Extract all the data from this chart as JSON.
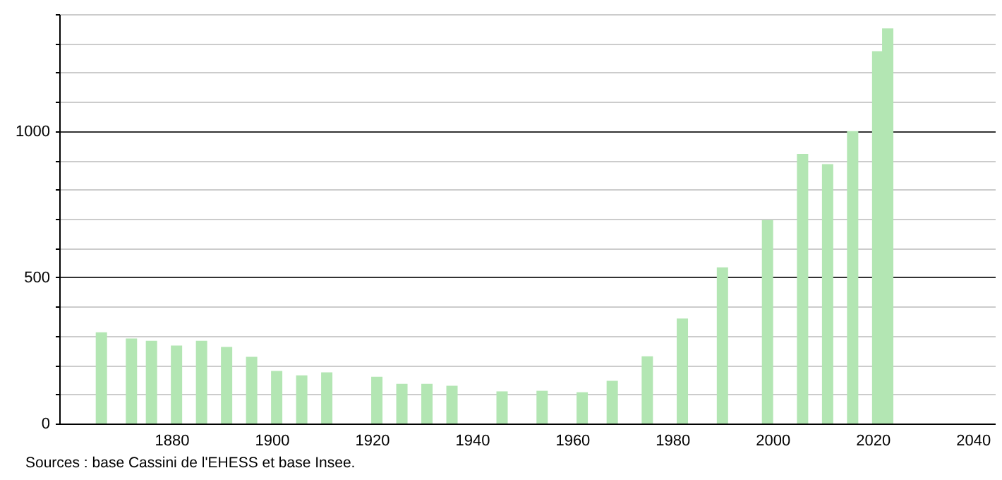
{
  "chart_data": {
    "type": "bar",
    "x": [
      1866,
      1872,
      1876,
      1881,
      1886,
      1891,
      1896,
      1901,
      1906,
      1911,
      1921,
      1926,
      1931,
      1936,
      1946,
      1954,
      1962,
      1968,
      1975,
      1982,
      1990,
      1999,
      2006,
      2011,
      2016,
      2021,
      2023
    ],
    "values": [
      312,
      291,
      283,
      267,
      283,
      262,
      228,
      180,
      165,
      175,
      160,
      136,
      136,
      129,
      110,
      112,
      107,
      146,
      230,
      359,
      534,
      696,
      922,
      887,
      1000,
      1273,
      1351
    ],
    "color": "#b3e6b3",
    "xlim": [
      1859,
      2043
    ],
    "xticks": [
      1880,
      1900,
      1920,
      1940,
      1960,
      1980,
      2000,
      2020,
      2040
    ],
    "ylim": [
      0,
      1400
    ],
    "yticks": [
      0,
      {
        "value": 100,
        "label": null
      },
      {
        "value": 200,
        "label": null
      },
      {
        "value": 300,
        "label": null
      },
      {
        "value": 400,
        "label": null
      },
      500,
      {
        "value": 600,
        "label": null
      },
      {
        "value": 700,
        "label": null
      },
      {
        "value": 800,
        "label": null
      },
      {
        "value": 900,
        "label": null
      },
      1000,
      {
        "value": 1100,
        "label": null
      },
      {
        "value": 1200,
        "label": null
      },
      {
        "value": 1300,
        "label": null
      },
      {
        "value": 1400,
        "label": null
      }
    ],
    "grid": "y",
    "annotations": [
      "Sources : base Cassini de l'EHESS et base Insee."
    ]
  }
}
